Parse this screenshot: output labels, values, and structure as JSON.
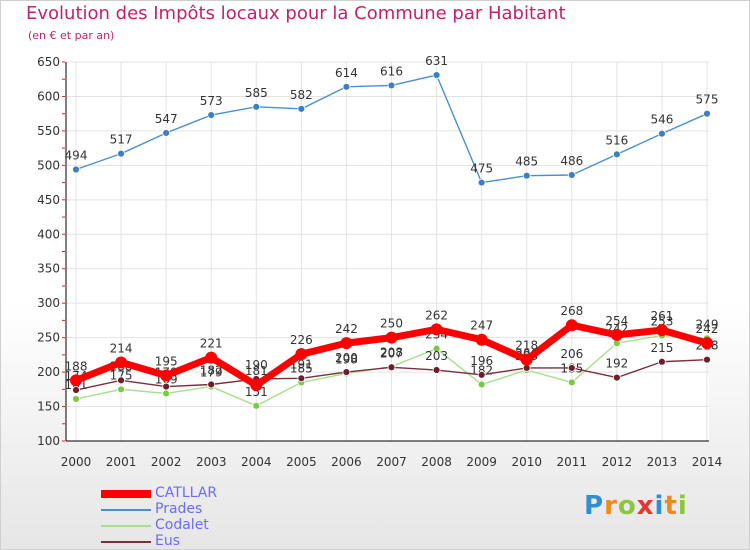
{
  "header": {
    "title": "Evolution des Impôts locaux pour la Commune par Habitant",
    "subtitle": "(en € et par an)"
  },
  "brand": {
    "letters": [
      "P",
      "r",
      "o",
      "x",
      "i",
      "t",
      "i"
    ],
    "colors": [
      "#2f8fd1",
      "#f08a1c",
      "#8cc63f",
      "#e6372f",
      "#2f8fd1",
      "#f08a1c",
      "#8cc63f"
    ]
  },
  "chart_data": {
    "type": "line",
    "x": [
      "2000",
      "2001",
      "2002",
      "2003",
      "2004",
      "2005",
      "2006",
      "2007",
      "2008",
      "2009",
      "2010",
      "2011",
      "2012",
      "2013",
      "2014"
    ],
    "ylim": [
      100,
      650
    ],
    "yticks": [
      "100",
      "150",
      "200",
      "250",
      "300",
      "350",
      "400",
      "450",
      "500",
      "550",
      "600",
      "650"
    ],
    "grid": true,
    "legend_position": "bottom-left",
    "series": [
      {
        "name": "Prades",
        "color": "#4a8fce",
        "marker": "#3e7fc1",
        "values": [
          494,
          517,
          547,
          573,
          585,
          582,
          614,
          616,
          631,
          475,
          485,
          486,
          516,
          546,
          575
        ],
        "labels": [
          "494",
          "517",
          "547",
          "573",
          "585",
          "582",
          "614",
          "616",
          "631",
          "475",
          "485",
          "486",
          "516",
          "546",
          "575"
        ]
      },
      {
        "name": "Codalet",
        "color": "#a6e08c",
        "marker": "#7ac943",
        "values": [
          161,
          175,
          169,
          179,
          151,
          185,
          198,
          208,
          234,
          182,
          203,
          185,
          242,
          253,
          249
        ],
        "labels": [
          "161",
          "175",
          "169",
          "179",
          "151",
          "185",
          "198",
          "208",
          "234",
          "182",
          "203",
          "185",
          "242",
          "253",
          "249"
        ]
      },
      {
        "name": "Eus",
        "color": "#7a2f3a",
        "marker": "#6b1f2a",
        "values": [
          174,
          188,
          179,
          182,
          190,
          191,
          200,
          207,
          203,
          196,
          206,
          206,
          192,
          215,
          218
        ],
        "labels": [
          "174",
          "188",
          "179",
          "182",
          "190",
          "191",
          "200",
          "207",
          "203",
          "196",
          "206",
          "206",
          "192",
          "215",
          "218"
        ]
      },
      {
        "name": "CATLLAR",
        "color": "#ff0000",
        "marker": "#ff0000",
        "values": [
          188,
          214,
          195,
          221,
          181,
          226,
          242,
          250,
          262,
          247,
          218,
          268,
          254,
          261,
          242
        ],
        "labels": [
          "188",
          "214",
          "195",
          "221",
          "181",
          "226",
          "242",
          "250",
          "262",
          "247",
          "218",
          "268",
          "254",
          "261",
          "242"
        ]
      }
    ],
    "legend": [
      "CATLLAR",
      "Prades",
      "Codalet",
      "Eus"
    ]
  }
}
